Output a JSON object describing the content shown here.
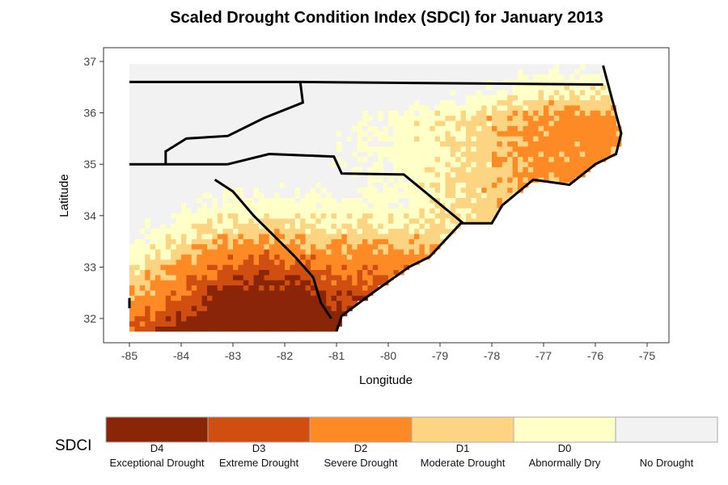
{
  "chart_data": {
    "type": "heatmap",
    "title": "Scaled Drought Condition Index (SDCI) for January 2013",
    "xlabel": "Longitude",
    "ylabel": "Latitude",
    "xlim": [
      -85.5,
      -74.5
    ],
    "ylim": [
      31.5,
      37.2
    ],
    "x_ticks": [
      "-85",
      "-84",
      "-83",
      "-82",
      "-81",
      "-80",
      "-79",
      "-78",
      "-77",
      "-76",
      "-75"
    ],
    "y_ticks": [
      "32",
      "33",
      "34",
      "35",
      "36",
      "37"
    ],
    "grid": false,
    "legend": {
      "title": "SDCI",
      "position": "bottom",
      "categories": [
        {
          "code": "D4",
          "label": "Exceptional Drought",
          "color": "#8b2508"
        },
        {
          "code": "D3",
          "label": "Extreme Drought",
          "color": "#d04e10"
        },
        {
          "code": "D2",
          "label": "Severe Drought",
          "color": "#fd8a24"
        },
        {
          "code": "D1",
          "label": "Moderate Drought",
          "color": "#fdd482"
        },
        {
          "code": "D0",
          "label": "Abnormally Dry",
          "color": "#ffffc8"
        },
        {
          "code": "",
          "label": "No Drought",
          "color": "#f2f2f2"
        }
      ]
    },
    "pattern": "Drought most severe (D3–D4) in southern Georgia/South Carolina, moderate to severe along the NC coast, none in the mountains and northern NC"
  }
}
